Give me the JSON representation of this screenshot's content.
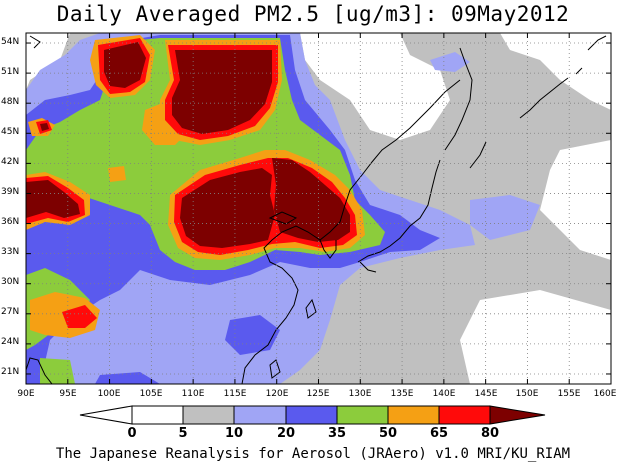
{
  "title": "Daily Averaged PM2.5 [ug/m3]: 09May2012",
  "credit": "The Japanese Reanalysis for Aerosol (JRAero) v1.0 MRI/KU_RIAM",
  "map": {
    "lon_range": [
      90,
      160
    ],
    "lat_range": [
      20,
      55
    ],
    "lat_ticks": [
      "54N",
      "51N",
      "48N",
      "45N",
      "42N",
      "39N",
      "36N",
      "33N",
      "30N",
      "27N",
      "24N",
      "21N"
    ],
    "lon_ticks": [
      "90E",
      "95E",
      "100E",
      "105E",
      "110E",
      "115E",
      "120E",
      "125E",
      "130E",
      "135E",
      "140E",
      "145E",
      "150E",
      "155E",
      "160E"
    ],
    "grid": true
  },
  "legend": {
    "levels": [
      "0",
      "5",
      "10",
      "20",
      "35",
      "50",
      "65",
      "80"
    ],
    "colors": [
      "#ffffff",
      "#c0c0c0",
      "#a0a5f5",
      "#5a5aee",
      "#8ccc3c",
      "#f5a014",
      "#ff0a0a",
      "#7d0000"
    ]
  },
  "palette": {
    "gray": "#c0c0c0",
    "lightblue": "#a0a5f5",
    "blue": "#5a5aee",
    "green": "#8ccc3c",
    "orange": "#f5a014",
    "red": "#ff0a0a",
    "maroon": "#7d0000"
  }
}
